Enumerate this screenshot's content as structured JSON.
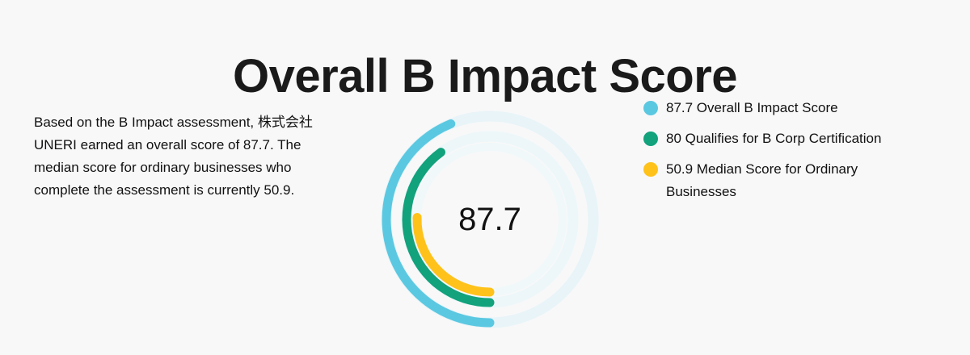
{
  "page": {
    "title": "Overall B Impact Score",
    "description": "Based on the B Impact assessment, 株式会社UNERI earned an overall score of 87.7. The median score for ordinary businesses who complete the assessment is currently 50.9.",
    "center_value": "87.7"
  },
  "chart_data": {
    "type": "radial-bar",
    "center_label": "87.7",
    "series": [
      {
        "name": "87.7 Overall B Impact Score",
        "value": 87.7,
        "color": "#5bc8e1"
      },
      {
        "name": "80 Qualifies for B Corp Certification",
        "value": 80,
        "color": "#12a27c"
      },
      {
        "name": "50.9 Median Score for Ordinary Businesses",
        "value": 50.9,
        "color": "#ffc21a"
      }
    ],
    "legend_position": "right",
    "track_color": "#e8f4f8"
  }
}
